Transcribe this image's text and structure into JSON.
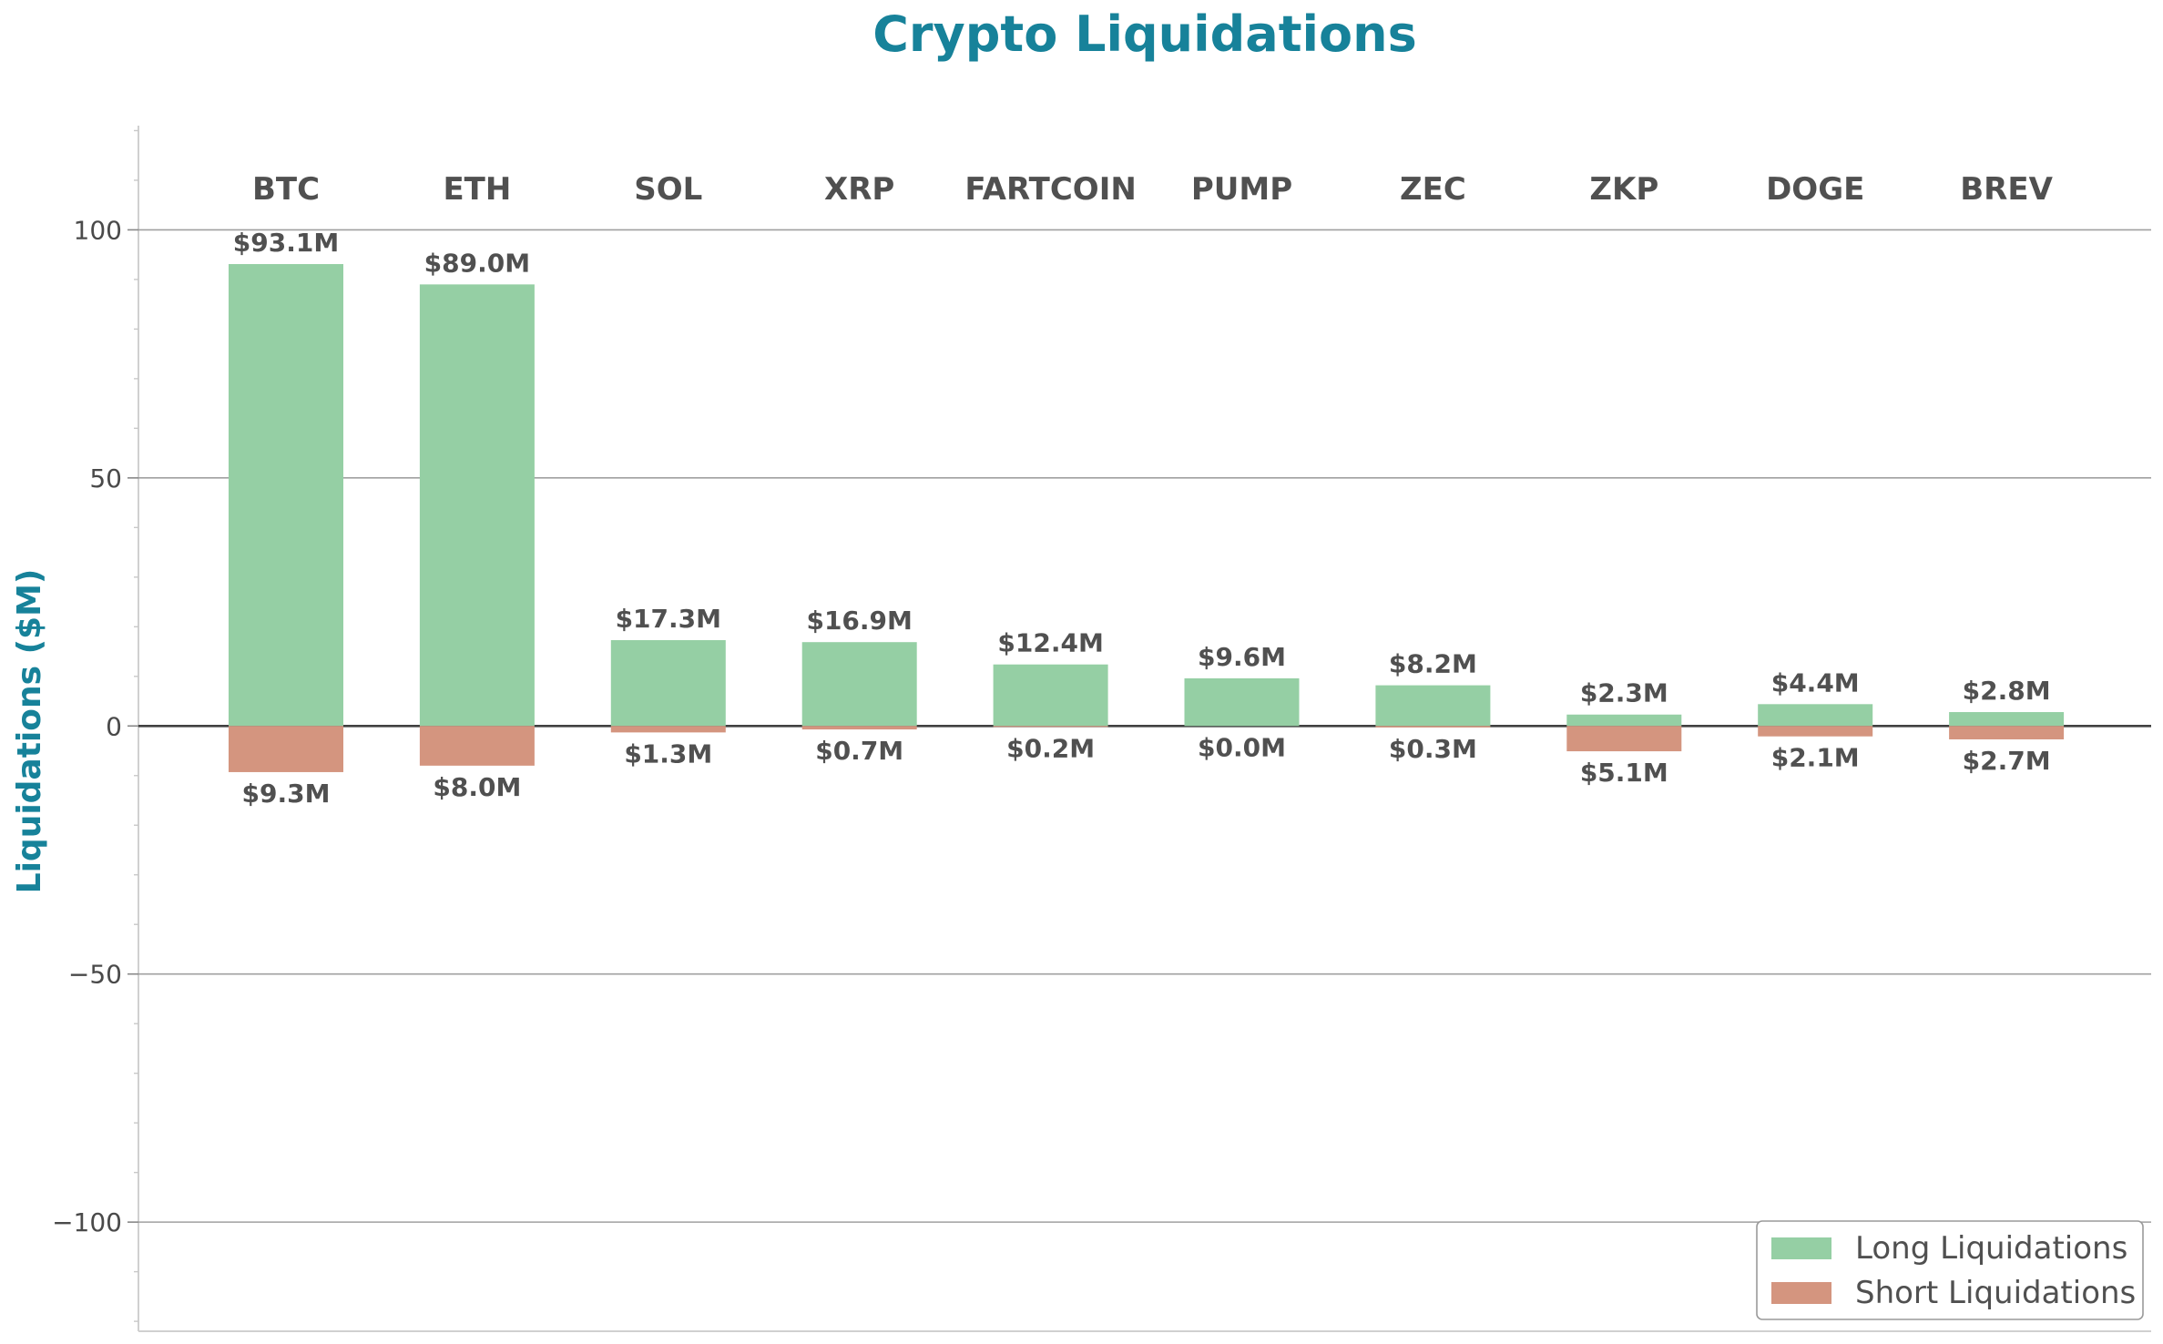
{
  "chart_data": {
    "type": "bar",
    "title": "Crypto Liquidations",
    "xlabel": "",
    "ylabel": "Liquidations ($M)",
    "ylim": [
      -122,
      121
    ],
    "yticks": [
      100,
      50,
      0,
      -50,
      -100
    ],
    "ytick_labels": [
      "100",
      "50",
      "0",
      "−50",
      "−100"
    ],
    "grid": true,
    "legend_position": "bottom-right",
    "categories": [
      "BTC",
      "ETH",
      "SOL",
      "XRP",
      "FARTCOIN",
      "PUMP",
      "ZEC",
      "ZKP",
      "DOGE",
      "BREV"
    ],
    "series": [
      {
        "name": "Long Liquidations",
        "color": "#95cfa4",
        "values": [
          93.1,
          89.0,
          17.3,
          16.9,
          12.4,
          9.6,
          8.2,
          2.3,
          4.4,
          2.8
        ],
        "labels": [
          "$93.1M",
          "$89.0M",
          "$17.3M",
          "$16.9M",
          "$12.4M",
          "$9.6M",
          "$8.2M",
          "$2.3M",
          "$4.4M",
          "$2.8M"
        ]
      },
      {
        "name": "Short Liquidations",
        "color": "#d4957f",
        "values": [
          -9.3,
          -8.0,
          -1.3,
          -0.7,
          -0.2,
          0.0,
          -0.3,
          -5.1,
          -2.1,
          -2.7
        ],
        "labels": [
          "$9.3M",
          "$8.0M",
          "$1.3M",
          "$0.7M",
          "$0.2M",
          "$0.0M",
          "$0.3M",
          "$5.1M",
          "$2.1M",
          "$2.7M"
        ]
      }
    ]
  }
}
